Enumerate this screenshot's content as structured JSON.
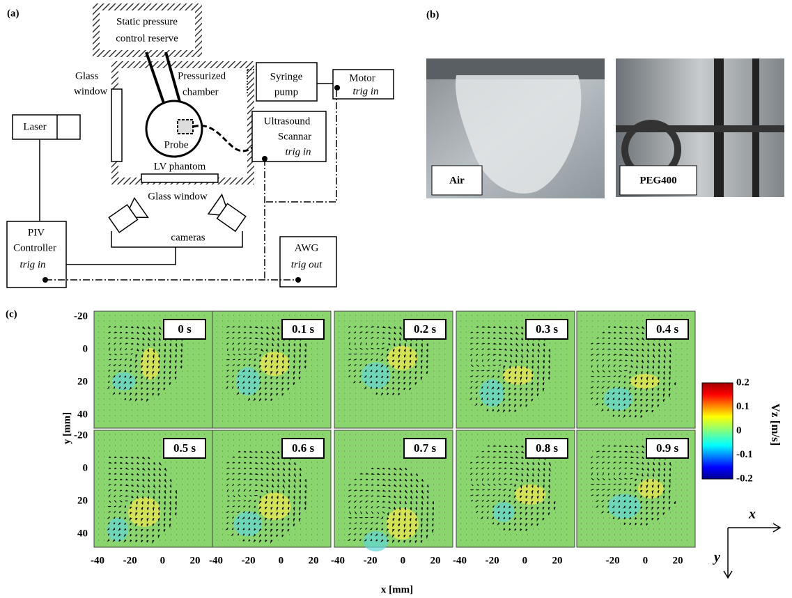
{
  "panel_labels": [
    "(a)",
    "(b)",
    "(c)"
  ],
  "schematic": {
    "static_pressure": [
      "Static pressure",
      "control reserve"
    ],
    "glass_window_side": [
      "Glass",
      "window"
    ],
    "pressurized_chamber": [
      "Pressurized",
      "chamber"
    ],
    "syringe_pump": [
      "Syringe",
      "pump"
    ],
    "motor": {
      "name": "Motor",
      "trigger": "trig in"
    },
    "laser": "Laser",
    "probe": "Probe",
    "ultrasound": {
      "name": [
        "Ultrasound",
        "Scannar"
      ],
      "trigger": "trig in"
    },
    "lv_phantom": "LV phantom",
    "glass_window_bottom": "Glass window",
    "cameras": "cameras",
    "piv": {
      "name": [
        "PIV",
        "Controller"
      ],
      "trigger": "trig in"
    },
    "awg": {
      "name": "AWG",
      "trigger": "trig out"
    }
  },
  "photos": [
    "Air",
    "PEG400"
  ],
  "piv_panels": {
    "times": [
      "0 s",
      "0.1 s",
      "0.2 s",
      "0.3 s",
      "0.4 s",
      "0.5 s",
      "0.6 s",
      "0.7 s",
      "0.8 s",
      "0.9 s"
    ],
    "y_label": "y [mm]",
    "x_label": "x [mm]",
    "y_ticks": [
      -20,
      0,
      20,
      40
    ],
    "x_ticks": [
      -40,
      -20,
      0,
      20
    ],
    "colorbar": {
      "label": "Vz [m/s]",
      "ticks": [
        0.2,
        0.1,
        0,
        -0.1,
        -0.2
      ]
    },
    "axes": [
      "x",
      "y"
    ]
  }
}
